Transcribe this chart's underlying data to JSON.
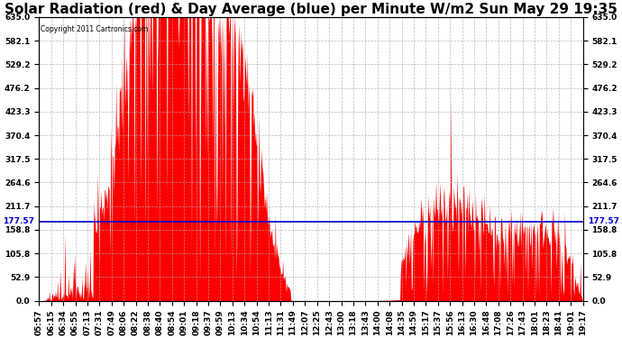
{
  "title": "Solar Radiation (red) & Day Average (blue) per Minute W/m2 Sun May 29 19:35",
  "copyright": "Copyright 2011 Cartronics.com",
  "avg_value": 177.57,
  "ymax": 635.0,
  "yticks": [
    0.0,
    52.9,
    105.8,
    158.8,
    211.7,
    264.6,
    317.5,
    370.4,
    423.3,
    476.2,
    529.2,
    582.1,
    635.0
  ],
  "x_labels": [
    "05:57",
    "06:15",
    "06:34",
    "06:55",
    "07:13",
    "07:31",
    "07:49",
    "08:06",
    "08:22",
    "08:38",
    "08:40",
    "08:54",
    "09:01",
    "09:18",
    "09:37",
    "09:59",
    "10:13",
    "10:34",
    "10:54",
    "11:13",
    "11:31",
    "11:49",
    "12:07",
    "12:25",
    "12:43",
    "13:00",
    "13:18",
    "13:43",
    "14:00",
    "14:08",
    "14:35",
    "14:59",
    "15:17",
    "15:37",
    "15:56",
    "16:13",
    "16:30",
    "16:48",
    "17:08",
    "17:26",
    "17:43",
    "18:01",
    "18:23",
    "18:41",
    "19:01",
    "19:17"
  ],
  "background_color": "#ffffff",
  "fill_color": "#ff0000",
  "line_color": "#ff0000",
  "avg_line_color": "#0000cc",
  "grid_color": "#aaaaaa",
  "title_fontsize": 11,
  "axis_fontsize": 6.5
}
